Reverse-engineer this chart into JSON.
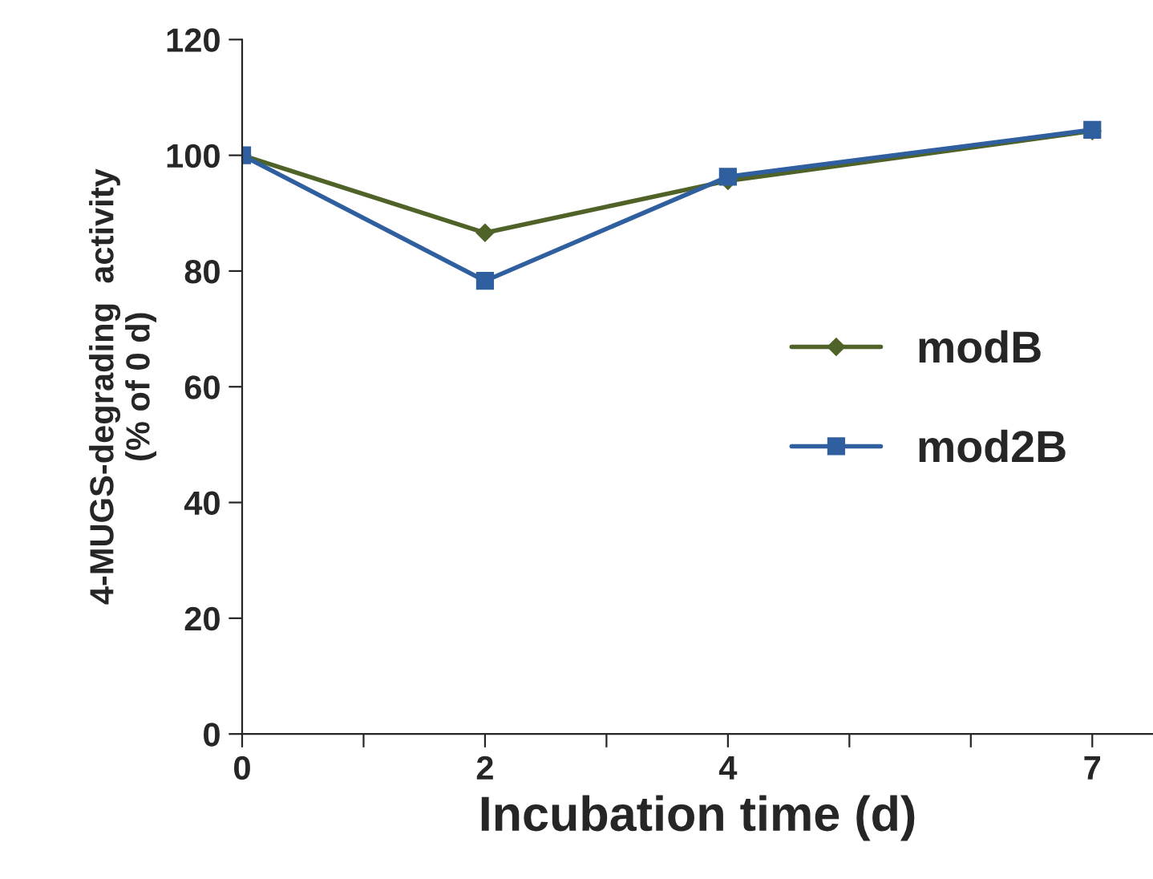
{
  "chart_data": {
    "type": "line",
    "xlabel": "Incubation time (d)",
    "ylabel": "4-MUGS-degrading  activity\n(% of 0 d)",
    "x": [
      0,
      2,
      4,
      7
    ],
    "series": [
      {
        "name": "modB",
        "color": "#4f6228",
        "marker": "diamond",
        "values": [
          100,
          86.6,
          95.6,
          104.2
        ]
      },
      {
        "name": "mod2B",
        "color": "#2f5f9e",
        "marker": "square",
        "values": [
          100,
          78.3,
          96.3,
          104.4
        ]
      }
    ],
    "xlim": [
      0,
      7.5
    ],
    "xticks": [
      0,
      {
        "value": 1,
        "label": null
      },
      2,
      {
        "value": 3,
        "label": null
      },
      4,
      {
        "value": 5,
        "label": null
      },
      {
        "value": 6,
        "label": null
      },
      7
    ],
    "ylim": [
      0,
      120
    ],
    "yticks": [
      0,
      20,
      40,
      60,
      80,
      100,
      120
    ],
    "grid": false,
    "legend": "center right",
    "line_style": "solid"
  }
}
